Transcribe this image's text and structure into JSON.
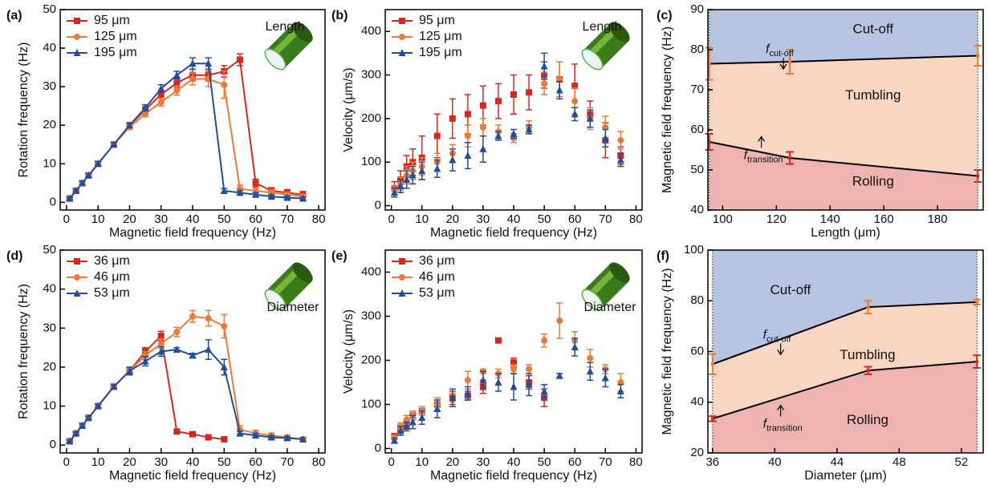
{
  "chart_data": [
    {
      "type": "line",
      "panel_label": "(a)",
      "xlabel": "Magnetic field frequency (Hz)",
      "ylabel": "Rotation frequency (Hz)",
      "inset_label": "Length",
      "x": [
        1,
        3,
        5,
        7,
        10,
        15,
        20,
        25,
        30,
        35,
        40,
        45,
        50,
        55,
        60,
        65,
        70,
        75
      ],
      "xlim": [
        -2,
        82
      ],
      "xticks": [
        0,
        10,
        20,
        30,
        40,
        50,
        60,
        70,
        80
      ],
      "ylim": [
        -2,
        50
      ],
      "yticks": [
        0,
        10,
        20,
        30,
        40,
        50
      ],
      "legend": "upper left",
      "series": [
        {
          "name": "95 μm",
          "color": "#d42a1e",
          "marker": "square",
          "values": [
            1,
            3,
            5,
            7,
            10,
            15,
            20,
            24,
            28,
            31,
            33,
            33,
            34,
            37,
            5,
            3,
            2.5,
            2
          ],
          "errors": [
            0.3,
            0.3,
            0.4,
            0.4,
            0.5,
            0.5,
            0.6,
            0.8,
            1,
            1.2,
            1.5,
            1.5,
            1.5,
            1.5,
            1,
            0.8,
            0.8,
            0.8
          ]
        },
        {
          "name": "125 μm",
          "color": "#ec7a36",
          "marker": "circle",
          "values": [
            1,
            3,
            5,
            7,
            10,
            15,
            19.5,
            23,
            26,
            29,
            32,
            32,
            30.5,
            3.5,
            3,
            2.5,
            2,
            1.5
          ],
          "errors": [
            0.3,
            0.3,
            0.4,
            0.4,
            0.5,
            0.5,
            0.6,
            0.8,
            1,
            1.2,
            1.5,
            2,
            3.5,
            1,
            0.8,
            0.8,
            0.6,
            0.6
          ]
        },
        {
          "name": "195 μm",
          "color": "#1f4e9c",
          "marker": "triangle",
          "values": [
            1,
            3,
            5,
            7,
            10,
            15,
            20,
            24.5,
            29.5,
            33,
            36,
            36,
            3,
            2.5,
            2,
            1.5,
            1.2,
            1
          ],
          "errors": [
            0.3,
            0.3,
            0.4,
            0.4,
            0.5,
            0.5,
            0.6,
            0.8,
            1,
            1,
            1.5,
            1.5,
            0.6,
            0.5,
            0.5,
            0.4,
            0.4,
            0.4
          ]
        }
      ]
    },
    {
      "type": "scatter",
      "panel_label": "(b)",
      "xlabel": "Magnetic field frequency (Hz)",
      "ylabel": "Velocity (μm/s)",
      "inset_label": "Length",
      "x": [
        1,
        3,
        5,
        7,
        10,
        15,
        20,
        25,
        30,
        35,
        40,
        45,
        50,
        55,
        60,
        65,
        70,
        75
      ],
      "xlim": [
        -2,
        82
      ],
      "xticks": [
        0,
        10,
        20,
        30,
        40,
        50,
        60,
        70,
        80
      ],
      "ylim": [
        -10,
        450
      ],
      "yticks": [
        0,
        100,
        200,
        300,
        400
      ],
      "legend": "upper left",
      "series": [
        {
          "name": "95 μm",
          "color": "#d42a1e",
          "marker": "square",
          "values": [
            40,
            60,
            90,
            100,
            110,
            160,
            200,
            210,
            230,
            240,
            255,
            260,
            300,
            290,
            275,
            210,
            150,
            115
          ],
          "errors": [
            15,
            20,
            25,
            30,
            50,
            50,
            45,
            45,
            45,
            40,
            45,
            40,
            30,
            40,
            50,
            30,
            40,
            20
          ]
        },
        {
          "name": "125 μm",
          "color": "#ec7a36",
          "marker": "circle",
          "values": [
            35,
            50,
            70,
            80,
            90,
            100,
            120,
            160,
            180,
            170,
            155,
            180,
            280,
            290,
            240,
            200,
            180,
            150
          ],
          "errors": [
            10,
            15,
            20,
            20,
            20,
            20,
            20,
            25,
            20,
            15,
            10,
            15,
            25,
            40,
            30,
            25,
            25,
            20
          ]
        },
        {
          "name": "195 μm",
          "color": "#1f4e9c",
          "marker": "triangle",
          "values": [
            30,
            45,
            60,
            70,
            80,
            85,
            105,
            115,
            130,
            160,
            165,
            175,
            320,
            265,
            210,
            200,
            155,
            105
          ],
          "errors": [
            10,
            15,
            20,
            20,
            20,
            20,
            25,
            30,
            30,
            10,
            10,
            10,
            30,
            20,
            15,
            20,
            20,
            15
          ]
        }
      ]
    },
    {
      "type": "area",
      "panel_label": "(c)",
      "xlabel": "Length (μm)",
      "ylabel": "Magnetic field frequency (Hz)",
      "x": [
        95,
        125,
        195
      ],
      "xlim": [
        94.5,
        197
      ],
      "xticks": [
        100,
        120,
        140,
        160,
        180
      ],
      "ylim": [
        40,
        90
      ],
      "yticks": [
        40,
        50,
        60,
        70,
        80,
        90
      ],
      "regions": [
        {
          "name": "Cut-off",
          "color": "#b7c4e2"
        },
        {
          "name": "Tumbling",
          "color": "#f8d6c2"
        },
        {
          "name": "Rolling",
          "color": "#efb3b1"
        }
      ],
      "series": [
        {
          "color": "#ec7a36",
          "values": [
            76.5,
            77,
            78.5
          ],
          "errors": [
            4,
            3,
            2.5
          ],
          "annotation": {
            "text": "f",
            "subscript": "cut-off"
          }
        },
        {
          "color": "#d42a1e",
          "values": [
            57,
            53,
            48.5
          ],
          "errors": [
            2,
            1.5,
            1.5
          ],
          "annotation": {
            "text": "f",
            "subscript": "transition"
          }
        }
      ]
    },
    {
      "type": "line",
      "panel_label": "(d)",
      "xlabel": "Magnetic field frequency (Hz)",
      "ylabel": "Rotation frequency (Hz)",
      "inset_label": "Diameter",
      "x": [
        1,
        3,
        5,
        7,
        10,
        15,
        20,
        25,
        30,
        35,
        40,
        45,
        50,
        55,
        60,
        65,
        70,
        75
      ],
      "xlim": [
        -2,
        82
      ],
      "xticks": [
        0,
        10,
        20,
        30,
        40,
        50,
        60,
        70,
        80
      ],
      "ylim": [
        -2,
        50
      ],
      "yticks": [
        0,
        10,
        20,
        30,
        40,
        50
      ],
      "legend": "upper left",
      "series": [
        {
          "name": "36 μm",
          "color": "#d42a1e",
          "marker": "square",
          "values": [
            1,
            3,
            5,
            7,
            10,
            15,
            19,
            24,
            28,
            3.5,
            2.8,
            2,
            1.5,
            null,
            null,
            null,
            null,
            null
          ],
          "errors": [
            0.3,
            0.3,
            0.4,
            0.4,
            0.5,
            0.5,
            0.8,
            1,
            1.2,
            0.4,
            0.3,
            0.3,
            0.3,
            null,
            null,
            null,
            null,
            null
          ]
        },
        {
          "name": "46 μm",
          "color": "#ec7a36",
          "marker": "circle",
          "values": [
            1,
            3,
            5,
            7,
            10,
            15,
            19,
            23,
            26,
            29,
            33,
            32.5,
            30.5,
            4,
            3,
            2.5,
            2,
            1.5
          ],
          "errors": [
            0.3,
            0.3,
            0.4,
            0.4,
            0.5,
            0.5,
            0.8,
            1,
            1.2,
            1.2,
            1.5,
            2,
            3,
            1,
            0.8,
            0.6,
            0.6,
            0.5
          ]
        },
        {
          "name": "53 μm",
          "color": "#1f4e9c",
          "marker": "triangle",
          "values": [
            1,
            3,
            5,
            7,
            10,
            15,
            19,
            21.5,
            24,
            24.5,
            23,
            24.5,
            20,
            3,
            2.5,
            2,
            1.8,
            1.5
          ],
          "errors": [
            0.3,
            0.3,
            0.4,
            0.4,
            0.5,
            0.5,
            1,
            1.2,
            1.2,
            0.5,
            0.5,
            2.5,
            2,
            0.5,
            0.5,
            0.4,
            0.4,
            0.4
          ]
        }
      ]
    },
    {
      "type": "scatter",
      "panel_label": "(e)",
      "xlabel": "Magnetic field frequency (Hz)",
      "ylabel": "Velocity (μm/s)",
      "inset_label": "Diameter",
      "x": [
        1,
        3,
        5,
        7,
        10,
        15,
        20,
        25,
        30,
        35,
        40,
        45,
        50,
        55,
        60,
        65,
        70,
        75
      ],
      "xlim": [
        -2,
        82
      ],
      "xticks": [
        0,
        10,
        20,
        30,
        40,
        50,
        60,
        70,
        80
      ],
      "ylim": [
        -10,
        450
      ],
      "yticks": [
        0,
        100,
        200,
        300,
        400
      ],
      "legend": "upper left",
      "series": [
        {
          "name": "36 μm",
          "color": "#d42a1e",
          "marker": "square",
          "values": [
            28,
            45,
            55,
            75,
            85,
            100,
            115,
            120,
            140,
            245,
            195,
            150,
            115,
            null,
            null,
            null,
            null,
            null
          ],
          "errors": [
            5,
            8,
            10,
            10,
            10,
            15,
            15,
            10,
            15,
            5,
            10,
            15,
            20,
            null,
            null,
            null,
            null,
            null
          ]
        },
        {
          "name": "46 μm",
          "color": "#ec7a36",
          "marker": "circle",
          "values": [
            25,
            50,
            65,
            75,
            85,
            100,
            110,
            155,
            175,
            170,
            180,
            180,
            245,
            290,
            245,
            205,
            180,
            150
          ],
          "errors": [
            5,
            8,
            10,
            10,
            10,
            15,
            15,
            20,
            5,
            10,
            10,
            10,
            15,
            40,
            20,
            20,
            10,
            20
          ]
        },
        {
          "name": "53 μm",
          "color": "#1f4e9c",
          "marker": "triangle",
          "values": [
            18,
            40,
            50,
            60,
            70,
            90,
            115,
            125,
            155,
            150,
            140,
            145,
            130,
            165,
            230,
            175,
            160,
            130
          ],
          "errors": [
            5,
            10,
            10,
            15,
            15,
            20,
            20,
            15,
            20,
            20,
            30,
            25,
            15,
            5,
            20,
            20,
            20,
            15
          ]
        }
      ]
    },
    {
      "type": "area",
      "panel_label": "(f)",
      "xlabel": "Diameter (μm)",
      "ylabel": "Magnetic field frequency (Hz)",
      "x": [
        36,
        46,
        53
      ],
      "xlim": [
        35.7,
        53.4
      ],
      "xticks": [
        36,
        40,
        44,
        48,
        52
      ],
      "ylim": [
        20,
        100
      ],
      "yticks": [
        20,
        40,
        60,
        80,
        100
      ],
      "regions": [
        {
          "name": "Cut-off",
          "color": "#b7c4e2"
        },
        {
          "name": "Tumbling",
          "color": "#f8d6c2"
        },
        {
          "name": "Rolling",
          "color": "#efb3b1"
        }
      ],
      "series": [
        {
          "color": "#ec7a36",
          "values": [
            55,
            77.5,
            79.5
          ],
          "errors": [
            4,
            2.5,
            1
          ],
          "annotation": {
            "text": "f",
            "subscript": "cut-off"
          }
        },
        {
          "color": "#d42a1e",
          "values": [
            33.5,
            52.5,
            56
          ],
          "errors": [
            1,
            1.5,
            2.5
          ],
          "annotation": {
            "text": "f",
            "subscript": "transition"
          }
        }
      ]
    }
  ]
}
